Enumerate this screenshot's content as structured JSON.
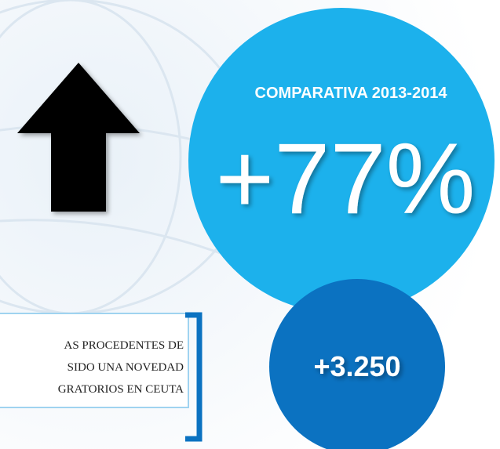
{
  "big_circle": {
    "label": "COMPARATIVA 2013-2014",
    "value": "+77%"
  },
  "small_circle": {
    "value": "+3.250"
  },
  "text_box": {
    "lines": [
      "AS PROCEDENTES DE",
      "SIDO UNA NOVEDAD",
      "GRATORIOS EN CEUTA"
    ]
  }
}
